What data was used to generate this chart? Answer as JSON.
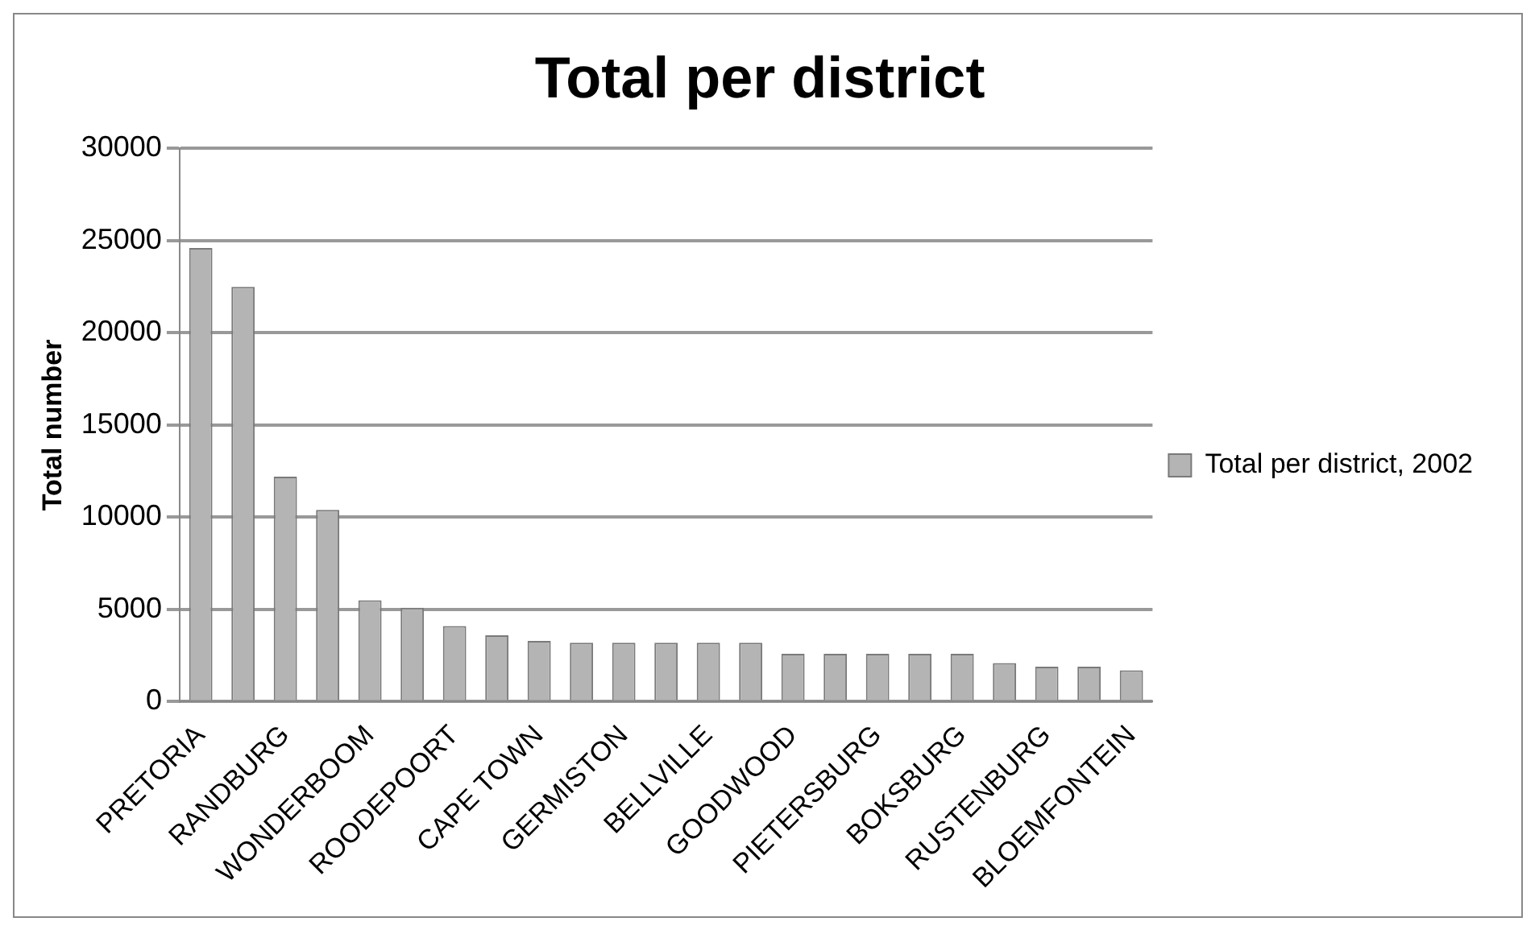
{
  "chart_data": {
    "type": "bar",
    "title": "Total per district",
    "ylabel": "Total number",
    "categories": [
      "PRETORIA",
      null,
      "RANDBURG",
      null,
      "WONDERBOOM",
      null,
      "ROODEPOORT",
      null,
      "CAPE TOWN",
      null,
      "GERMISTON",
      null,
      "BELLVILLE",
      null,
      "GOODWOOD",
      null,
      "PIETERSBURG",
      null,
      "BOKSBURG",
      null,
      "RUSTENBURG",
      null,
      "BLOEMFONTEIN"
    ],
    "series": [
      {
        "name": "Total per district, 2002",
        "color": "#b4b4b4",
        "values": [
          24600,
          22500,
          12200,
          10400,
          5500,
          5100,
          4100,
          3600,
          3300,
          3200,
          3200,
          3200,
          3200,
          3200,
          2600,
          2600,
          2600,
          2600,
          2600,
          2100,
          1900,
          1900,
          1700
        ]
      }
    ],
    "ylim": [
      0,
      30000
    ],
    "yticks": [
      0,
      5000,
      10000,
      15000,
      20000,
      25000,
      30000
    ],
    "grid": "y",
    "legend": "right"
  }
}
